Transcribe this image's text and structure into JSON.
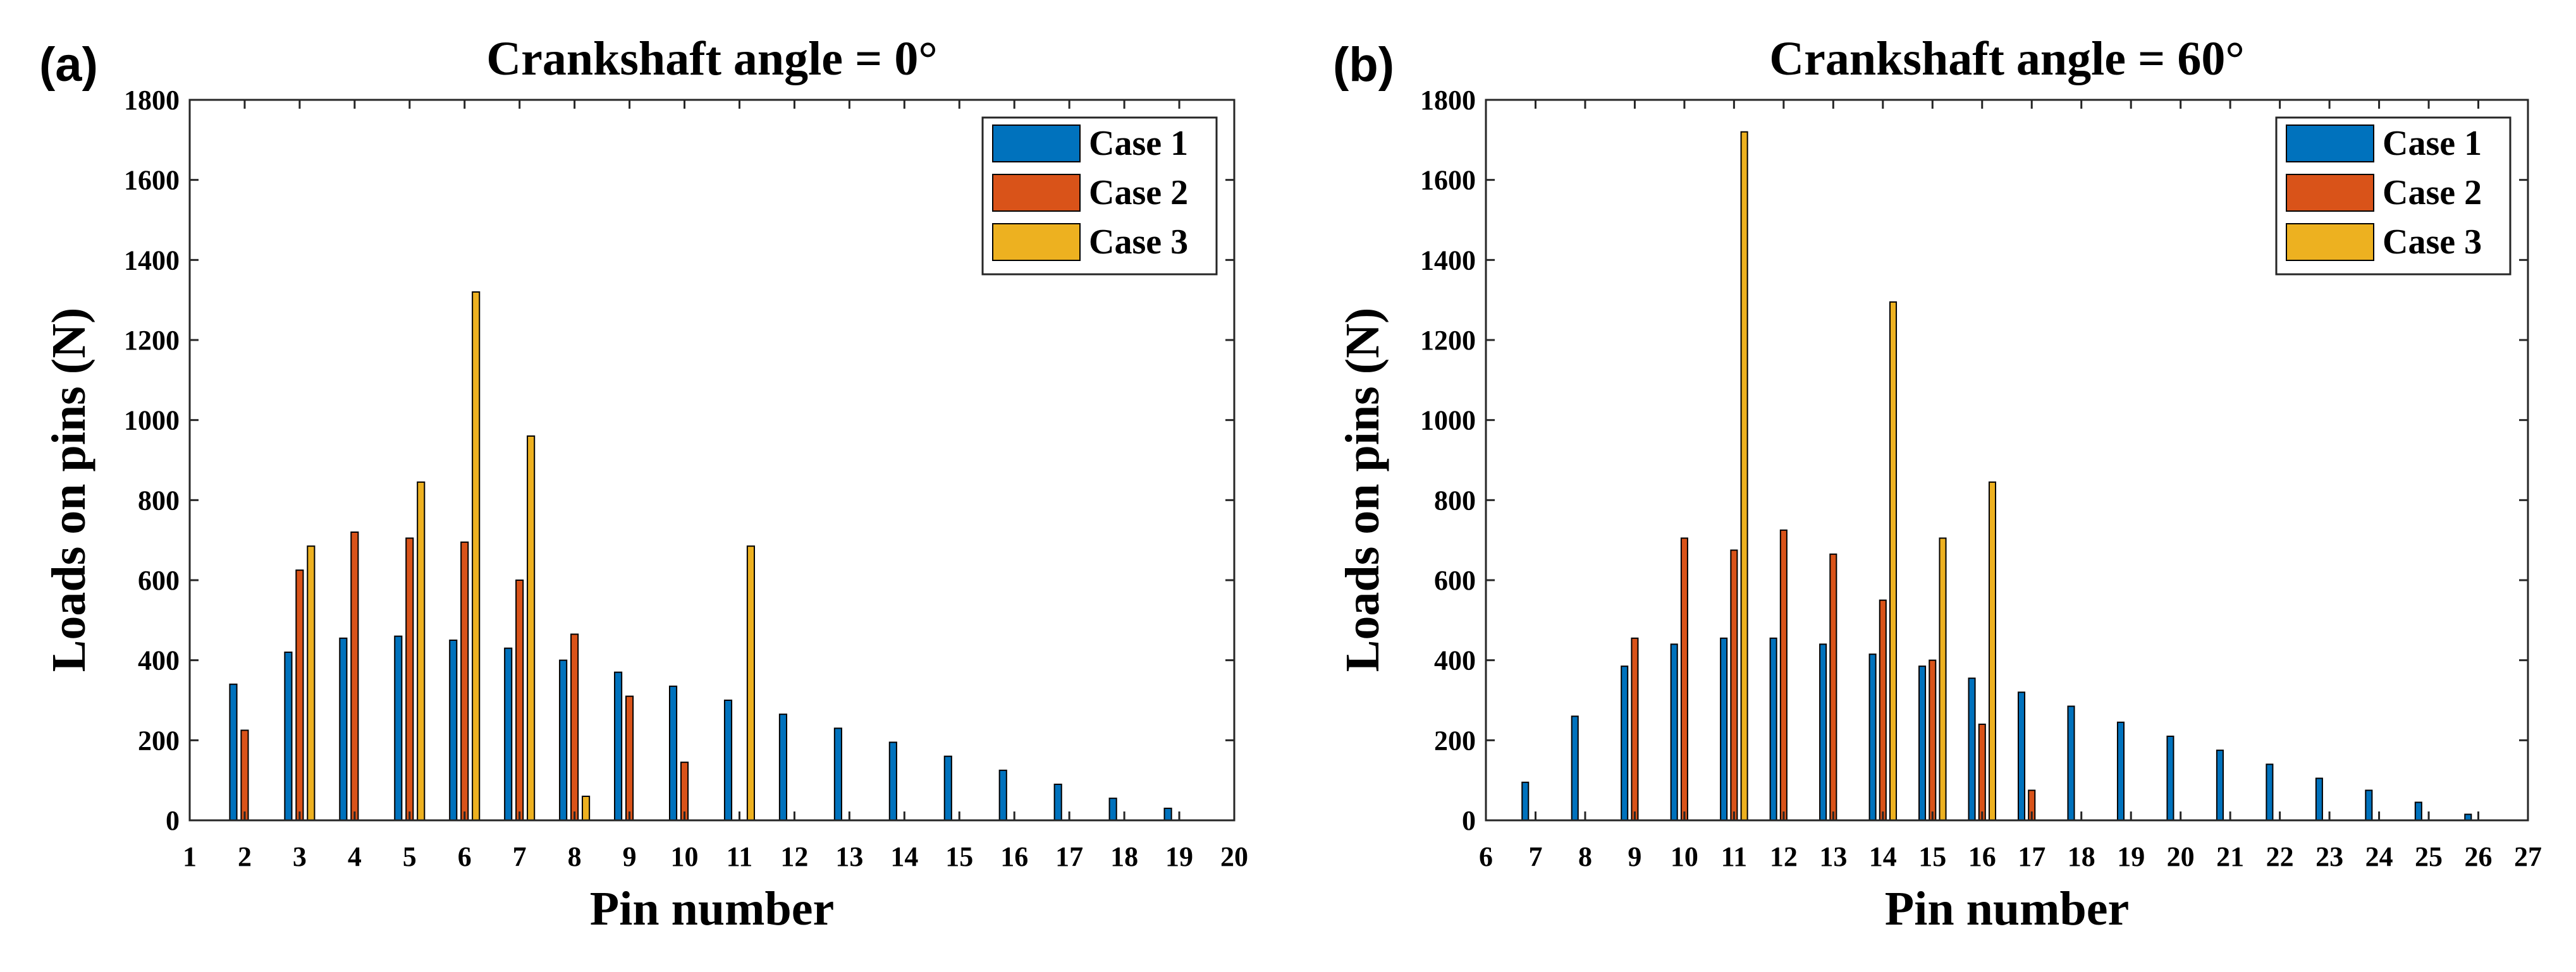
{
  "chart_data": [
    {
      "type": "bar",
      "panel": "(a)",
      "title": "Crankshaft angle = 0°",
      "xlabel": "Pin number",
      "ylabel": "Loads on pins (N)",
      "xlim": [
        1,
        20
      ],
      "ylim": [
        0,
        1800
      ],
      "xticks": [
        1,
        2,
        3,
        4,
        5,
        6,
        7,
        8,
        9,
        10,
        11,
        12,
        13,
        14,
        15,
        16,
        17,
        18,
        19,
        20
      ],
      "yticks": [
        0,
        200,
        400,
        600,
        800,
        1000,
        1200,
        1400,
        1600,
        1800
      ],
      "legend_position": "top-right",
      "categories": [
        2,
        3,
        4,
        5,
        6,
        7,
        8,
        9,
        10,
        11,
        12,
        13,
        14,
        15,
        16,
        17,
        18,
        19
      ],
      "series": [
        {
          "name": "Case 1",
          "color": "#0072BD",
          "values": [
            340,
            420,
            455,
            460,
            450,
            430,
            400,
            370,
            335,
            300,
            265,
            230,
            195,
            160,
            125,
            90,
            55,
            30
          ]
        },
        {
          "name": "Case 2",
          "color": "#D95319",
          "values": [
            225,
            625,
            720,
            705,
            695,
            600,
            465,
            310,
            145,
            0,
            0,
            0,
            0,
            0,
            0,
            0,
            0,
            0
          ]
        },
        {
          "name": "Case 3",
          "color": "#EDB120",
          "values": [
            0,
            685,
            0,
            845,
            1320,
            960,
            60,
            0,
            0,
            685,
            0,
            0,
            0,
            0,
            0,
            0,
            0,
            0
          ]
        }
      ]
    },
    {
      "type": "bar",
      "panel": "(b)",
      "title": "Crankshaft angle = 60°",
      "xlabel": "Pin number",
      "ylabel": "Loads on pins (N)",
      "xlim": [
        6,
        27
      ],
      "ylim": [
        0,
        1800
      ],
      "xticks": [
        6,
        7,
        8,
        9,
        10,
        11,
        12,
        13,
        14,
        15,
        16,
        17,
        18,
        19,
        20,
        21,
        22,
        23,
        24,
        25,
        26,
        27
      ],
      "yticks": [
        0,
        200,
        400,
        600,
        800,
        1000,
        1200,
        1400,
        1600,
        1800
      ],
      "legend_position": "top-right",
      "categories": [
        7,
        8,
        9,
        10,
        11,
        12,
        13,
        14,
        15,
        16,
        17,
        18,
        19,
        20,
        21,
        22,
        23,
        24,
        25,
        26
      ],
      "series": [
        {
          "name": "Case 1",
          "color": "#0072BD",
          "values": [
            95,
            260,
            385,
            440,
            455,
            455,
            440,
            415,
            385,
            355,
            320,
            285,
            245,
            210,
            175,
            140,
            105,
            75,
            45,
            15
          ]
        },
        {
          "name": "Case 2",
          "color": "#D95319",
          "values": [
            0,
            0,
            455,
            705,
            675,
            725,
            665,
            550,
            400,
            240,
            75,
            0,
            0,
            0,
            0,
            0,
            0,
            0,
            0,
            0
          ]
        },
        {
          "name": "Case 3",
          "color": "#EDB120",
          "values": [
            0,
            0,
            0,
            0,
            1720,
            0,
            0,
            1295,
            705,
            845,
            0,
            0,
            0,
            0,
            0,
            0,
            0,
            0,
            0,
            0
          ]
        }
      ]
    }
  ]
}
